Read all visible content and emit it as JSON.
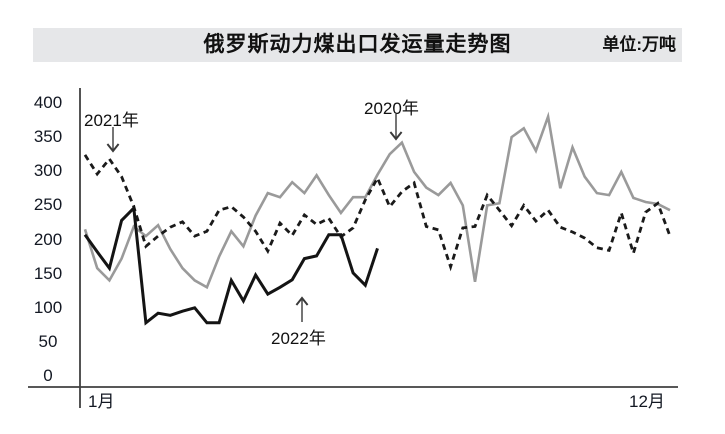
{
  "header": {
    "title": "俄罗斯动力煤出口发运量走势图",
    "unit": "单位:万吨"
  },
  "chart_data": {
    "type": "line",
    "title": "俄罗斯动力煤出口发运量走势图",
    "unit": "万吨",
    "grid": false,
    "legend_position": "inline-annotations",
    "ylim": [
      0,
      400
    ],
    "yticks": [
      400,
      350,
      300,
      250,
      200,
      150,
      100,
      50,
      0
    ],
    "x_axis": {
      "first_label": "1月",
      "last_label": "12月",
      "note_points_per_series": "weekly points from January to December"
    },
    "series": [
      {
        "name": "2020年",
        "style": "solid",
        "color": "#9a9a9a",
        "values": [
          215,
          158,
          140,
          172,
          219,
          205,
          221,
          186,
          158,
          140,
          130,
          175,
          212,
          190,
          235,
          268,
          262,
          284,
          268,
          294,
          265,
          239,
          262,
          262,
          295,
          325,
          342,
          299,
          276,
          265,
          283,
          250,
          138,
          250,
          253,
          350,
          363,
          330,
          380,
          275,
          335,
          292,
          268,
          265,
          299,
          261,
          255,
          252,
          243
        ]
      },
      {
        "name": "2021年",
        "style": "dashed",
        "color": "#1a1a1a",
        "values": [
          324,
          296,
          318,
          292,
          248,
          190,
          205,
          218,
          226,
          205,
          212,
          243,
          248,
          233,
          212,
          183,
          224,
          206,
          236,
          222,
          231,
          204,
          217,
          258,
          290,
          248,
          270,
          283,
          219,
          214,
          160,
          217,
          219,
          265,
          243,
          220,
          250,
          227,
          243,
          218,
          211,
          202,
          188,
          184,
          239,
          180,
          240,
          253,
          205
        ]
      },
      {
        "name": "2022年",
        "style": "solid",
        "color": "#141414",
        "values": [
          207,
          182,
          158,
          228,
          246,
          78,
          92,
          89,
          95,
          100,
          78,
          78,
          140,
          110,
          148,
          120,
          130,
          141,
          172,
          176,
          207,
          207,
          151,
          133,
          187
        ]
      }
    ],
    "annotations": [
      {
        "label": "2020年",
        "arrow": "down",
        "target_series": "2020年"
      },
      {
        "label": "2021年",
        "arrow": "down",
        "target_series": "2021年"
      },
      {
        "label": "2022年",
        "arrow": "up",
        "target_series": "2022年"
      }
    ]
  }
}
